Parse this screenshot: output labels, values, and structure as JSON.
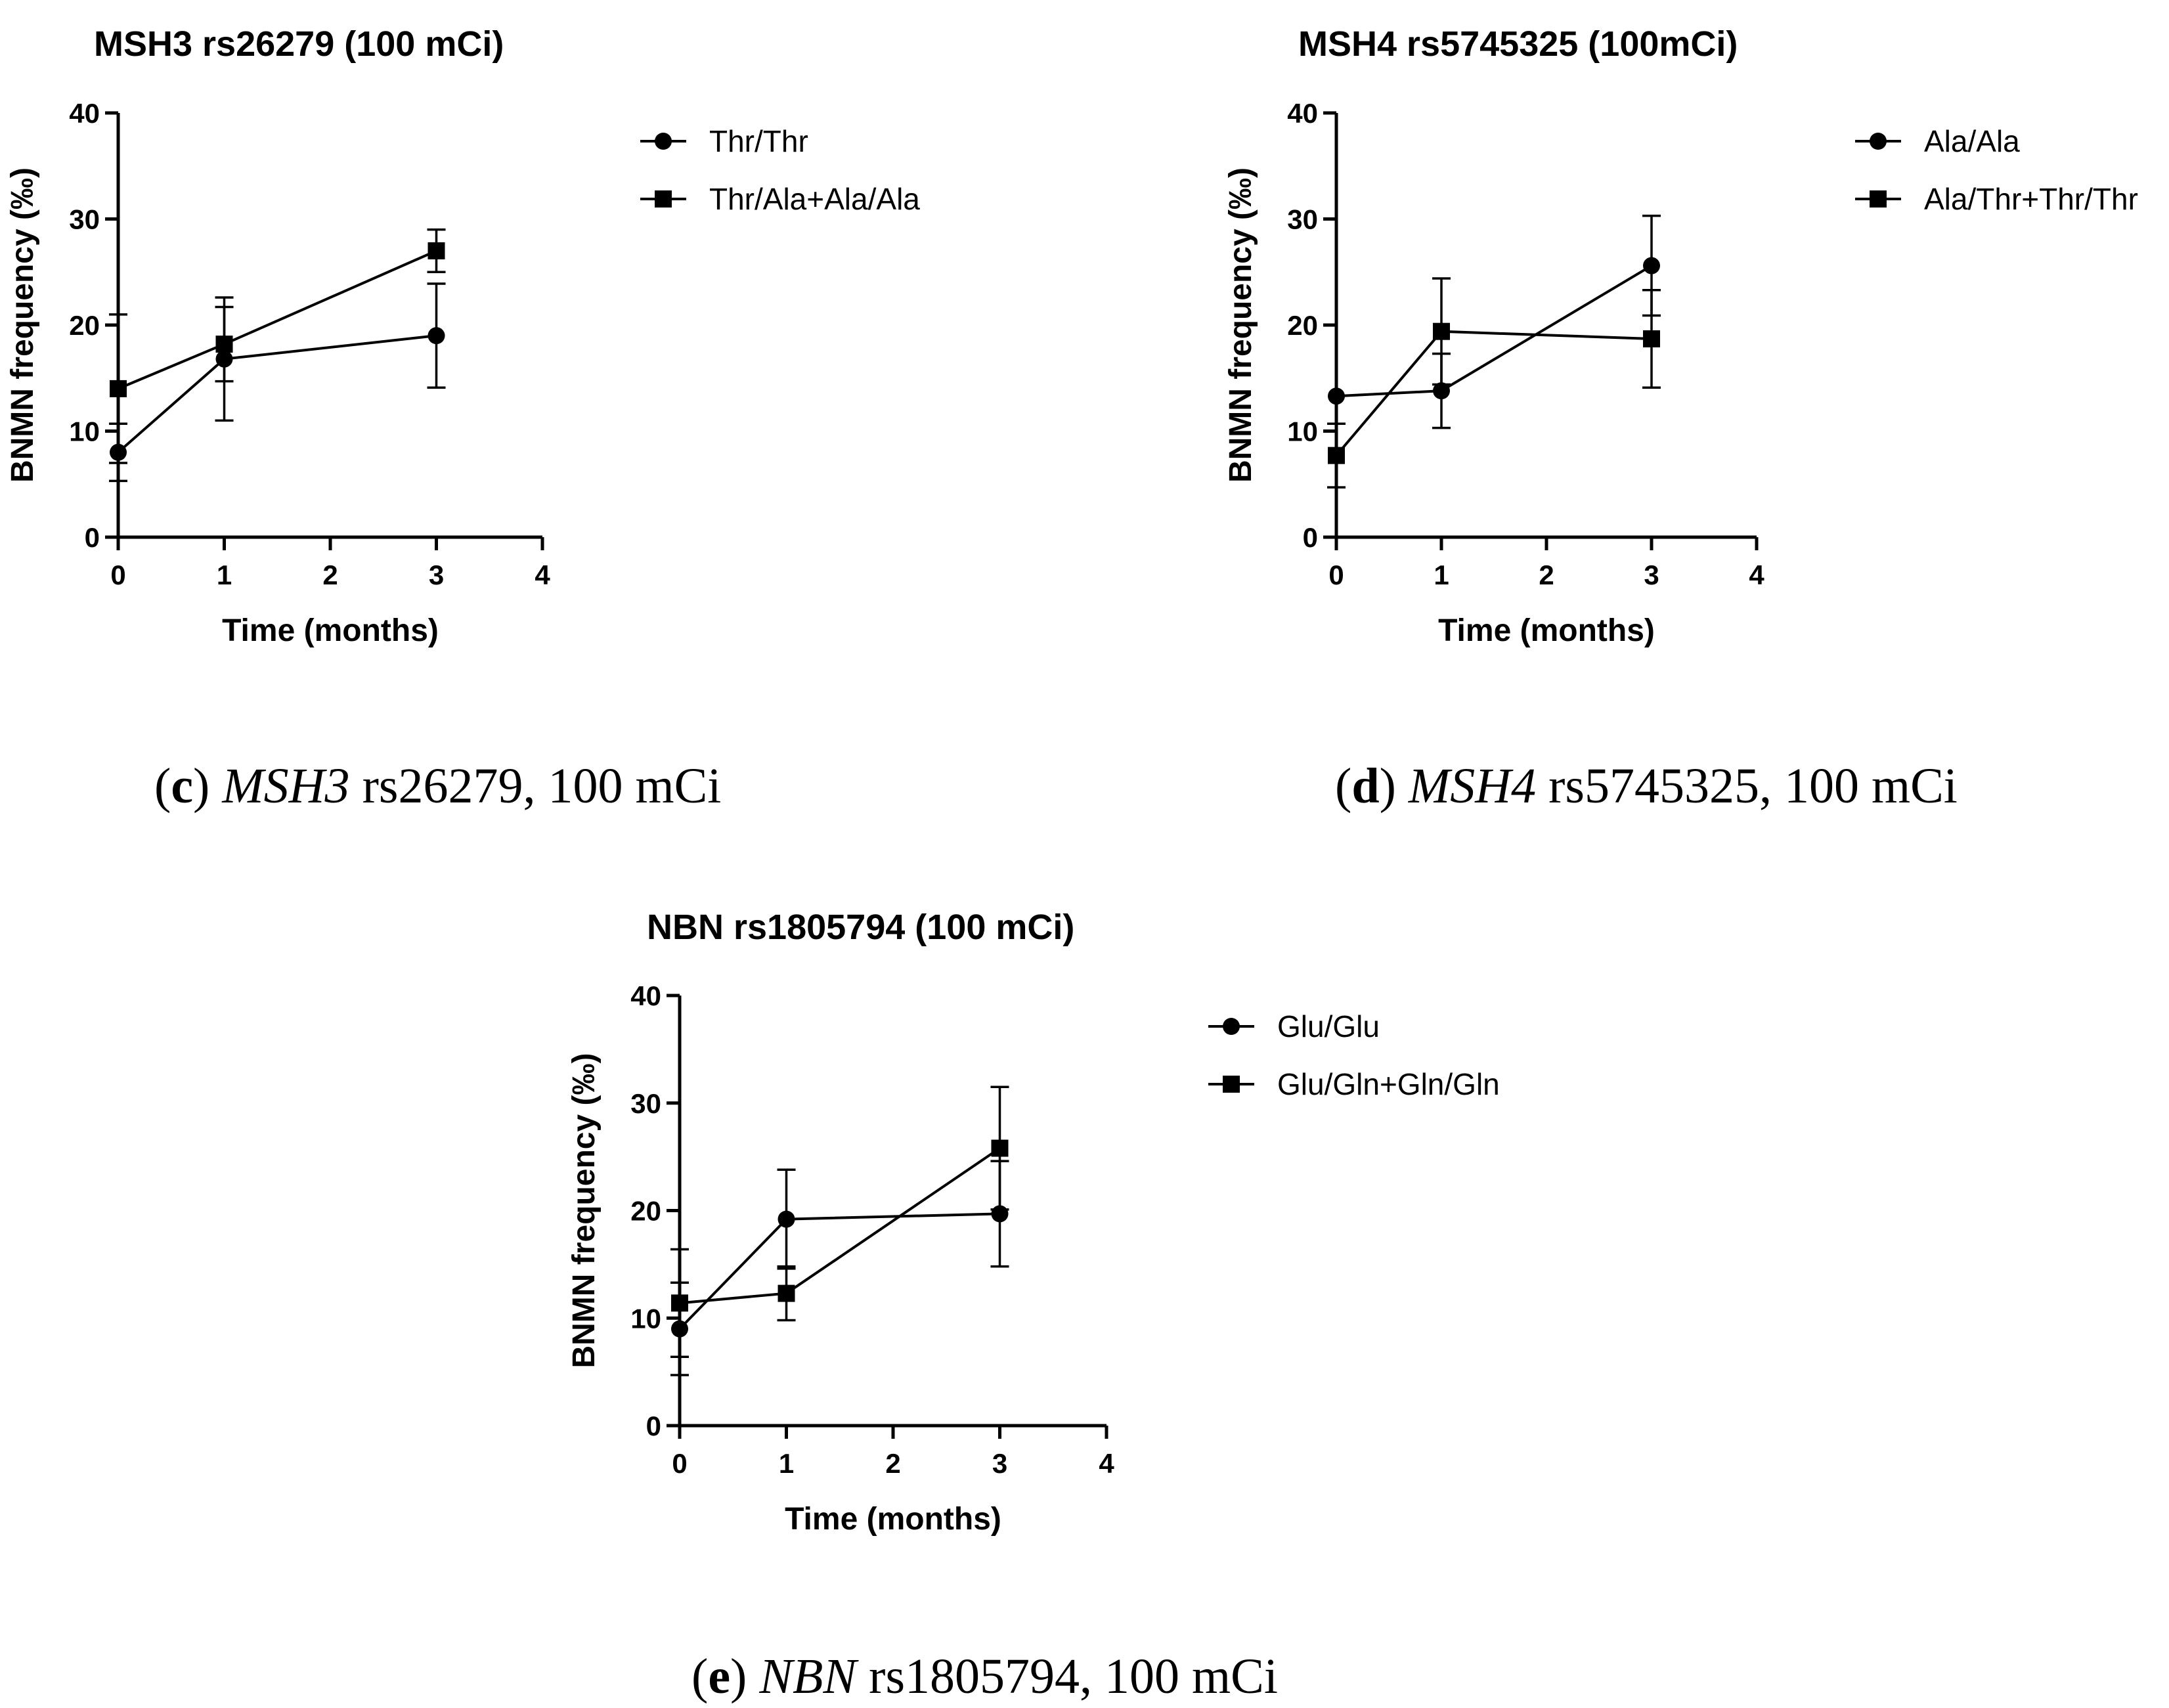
{
  "chart_data": [
    {
      "panel": "c",
      "type": "line",
      "title": "MSH3 rs26279 (100 mCi)",
      "xlabel": "Time (months)",
      "ylabel": "BNMN frequency (‰)",
      "xlim": [
        0,
        4
      ],
      "ylim": [
        0,
        40
      ],
      "x_ticks": [
        0,
        1,
        2,
        3,
        4
      ],
      "y_ticks": [
        0,
        10,
        20,
        30,
        40
      ],
      "x_tick_labels": [
        "0",
        "1",
        "2",
        "3",
        "4"
      ],
      "y_tick_labels": [
        "0",
        "10",
        "20",
        "30",
        "40"
      ],
      "series": [
        {
          "name": "Thr/Thr",
          "marker": "circle",
          "x": [
            0,
            1,
            3
          ],
          "y": [
            8.0,
            16.8,
            19.0
          ],
          "err": [
            2.7,
            5.8,
            4.9
          ]
        },
        {
          "name": "Thr/Ala+Ala/Ala",
          "marker": "square",
          "x": [
            0,
            1,
            3
          ],
          "y": [
            14.0,
            18.2,
            27.0
          ],
          "err": [
            7.0,
            3.5,
            2.0
          ]
        }
      ],
      "caption": {
        "letter": "c",
        "gene": "MSH3",
        "rest": " rs26279, 100 mCi"
      }
    },
    {
      "panel": "d",
      "type": "line",
      "title": "MSH4 rs5745325 (100mCi)",
      "xlabel": "Time (months)",
      "ylabel": "BNMN frequency (‰)",
      "xlim": [
        0,
        4
      ],
      "ylim": [
        0,
        40
      ],
      "x_ticks": [
        0,
        1,
        2,
        3,
        4
      ],
      "y_ticks": [
        0,
        10,
        20,
        30,
        40
      ],
      "x_tick_labels": [
        "0",
        "1",
        "2",
        "3",
        "4"
      ],
      "y_tick_labels": [
        "0",
        "10",
        "20",
        "30",
        "40"
      ],
      "series": [
        {
          "name": "Ala/Ala",
          "marker": "circle",
          "x": [
            0,
            1,
            3
          ],
          "y": [
            13.3,
            13.8,
            25.6
          ],
          "err": [
            0,
            3.5,
            4.7
          ]
        },
        {
          "name": "Ala/Thr+Thr/Thr",
          "marker": "square",
          "x": [
            0,
            1,
            3
          ],
          "y": [
            7.7,
            19.4,
            18.7
          ],
          "err": [
            3.0,
            5.0,
            4.6
          ]
        }
      ],
      "caption": {
        "letter": "d",
        "gene": "MSH4",
        "rest": " rs5745325, 100 mCi"
      }
    },
    {
      "panel": "e",
      "type": "line",
      "title": "NBN rs1805794 (100 mCi)",
      "xlabel": "Time (months)",
      "ylabel": "BNMN frequency (‰)",
      "xlim": [
        0,
        4
      ],
      "ylim": [
        0,
        40
      ],
      "x_ticks": [
        0,
        1,
        2,
        3,
        4
      ],
      "y_ticks": [
        0,
        10,
        20,
        30,
        40
      ],
      "x_tick_labels": [
        "0",
        "1",
        "2",
        "3",
        "4"
      ],
      "y_tick_labels": [
        "0",
        "10",
        "20",
        "30",
        "40"
      ],
      "series": [
        {
          "name": "Glu/Glu",
          "marker": "circle",
          "x": [
            0,
            1,
            3
          ],
          "y": [
            9.0,
            19.2,
            19.7
          ],
          "err": [
            4.3,
            4.6,
            4.9
          ]
        },
        {
          "name": "Glu/Gln+Gln/Gln",
          "marker": "square",
          "x": [
            0,
            1,
            3
          ],
          "y": [
            11.4,
            12.3,
            25.8
          ],
          "err": [
            5.0,
            2.5,
            5.7
          ]
        }
      ],
      "caption": {
        "letter": "e",
        "gene": "NBN",
        "rest": " rs1805794, 100 mCi"
      }
    }
  ]
}
